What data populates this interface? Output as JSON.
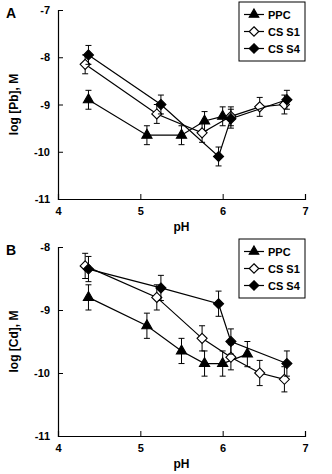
{
  "chart_data": [
    {
      "type": "line",
      "title": "A",
      "xlabel": "pH",
      "ylabel": "log [Pb], M",
      "xlim": [
        4,
        7
      ],
      "xticks": [
        4,
        5,
        6,
        7
      ],
      "ylim": [
        -11,
        -7
      ],
      "yticks": [
        -11,
        -10,
        -9,
        -8,
        -7
      ],
      "grid": false,
      "legend": "top-right",
      "series": [
        {
          "name": "PPC",
          "color": "#000000",
          "marker": "triangle",
          "line_style": "solid",
          "x": [
            4.37,
            5.08,
            5.5,
            5.78,
            6.0
          ],
          "values": [
            -8.9,
            -9.65,
            -9.65,
            -9.35,
            -9.25
          ],
          "errors": [
            0.2,
            0.2,
            0.2,
            0.2,
            0.2
          ]
        },
        {
          "name": "CS S1",
          "color": "#000000",
          "marker": "diamond-open",
          "line_style": "solid",
          "x": [
            4.33,
            5.2,
            5.75,
            6.1,
            6.45,
            6.75
          ],
          "values": [
            -8.15,
            -9.2,
            -9.6,
            -9.25,
            -9.05,
            -9.0
          ],
          "errors": [
            0.2,
            0.2,
            0.2,
            0.2,
            0.2,
            0.2
          ]
        },
        {
          "name": "CS S4",
          "color": "#000000",
          "marker": "diamond",
          "line_style": "solid",
          "x": [
            4.37,
            5.25,
            5.95,
            6.1,
            6.78
          ],
          "values": [
            -7.95,
            -9.0,
            -10.1,
            -9.3,
            -8.9
          ],
          "errors": [
            0.2,
            0.2,
            0.2,
            0.2,
            0.2
          ]
        }
      ]
    },
    {
      "type": "line",
      "title": "B",
      "xlabel": "pH",
      "ylabel": "log [Cd], M",
      "xlim": [
        4,
        7
      ],
      "xticks": [
        4,
        5,
        6,
        7
      ],
      "ylim": [
        -11,
        -8
      ],
      "yticks": [
        -11,
        -10,
        -9,
        -8
      ],
      "grid": false,
      "legend": "top-right",
      "series": [
        {
          "name": "PPC",
          "color": "#000000",
          "marker": "triangle",
          "line_style": "solid",
          "x": [
            4.37,
            5.08,
            5.5,
            5.78,
            6.0,
            6.3
          ],
          "values": [
            -8.8,
            -9.25,
            -9.65,
            -9.85,
            -9.85,
            -9.7
          ],
          "errors": [
            0.2,
            0.2,
            0.2,
            0.2,
            0.2,
            0.2
          ]
        },
        {
          "name": "CS S1",
          "color": "#000000",
          "marker": "diamond-open",
          "line_style": "solid",
          "x": [
            4.33,
            5.2,
            5.75,
            6.1,
            6.45,
            6.75
          ],
          "values": [
            -8.3,
            -8.8,
            -9.45,
            -9.75,
            -10.0,
            -10.1
          ],
          "errors": [
            0.2,
            0.2,
            0.2,
            0.2,
            0.2,
            0.2
          ]
        },
        {
          "name": "CS S4",
          "color": "#000000",
          "marker": "diamond",
          "line_style": "solid",
          "x": [
            4.37,
            5.25,
            5.95,
            6.1,
            6.78
          ],
          "values": [
            -8.35,
            -8.65,
            -8.9,
            -9.5,
            -9.85
          ],
          "errors": [
            0.2,
            0.2,
            0.2,
            0.2,
            0.2
          ]
        }
      ]
    }
  ]
}
